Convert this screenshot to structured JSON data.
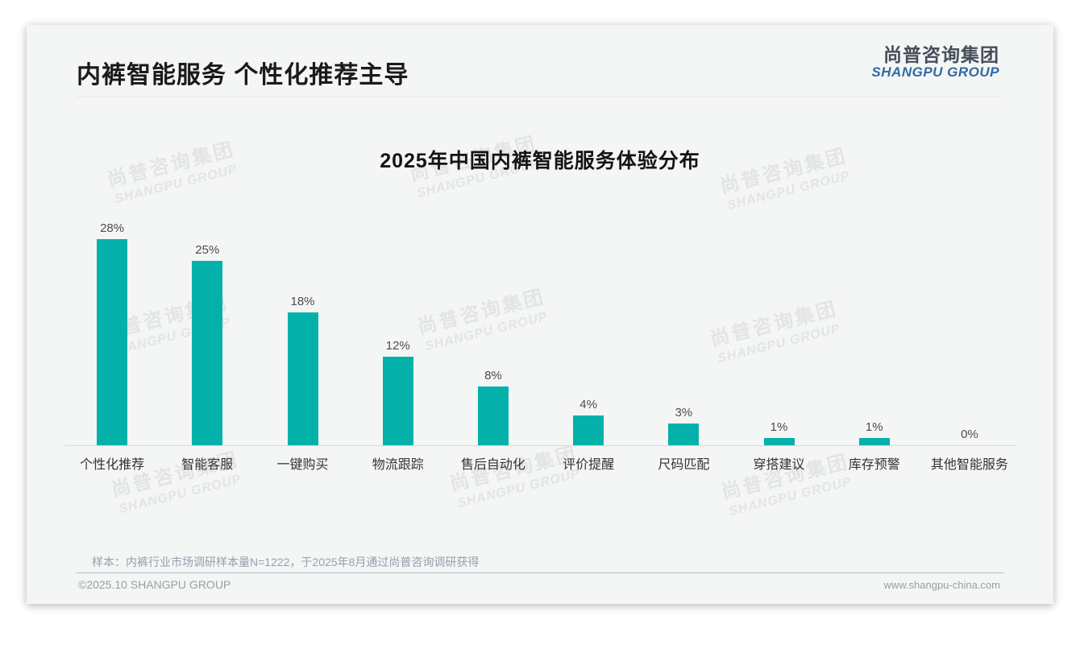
{
  "header": {
    "title": "内裤智能服务 个性化推荐主导"
  },
  "logo": {
    "cn": "尚普咨询集团",
    "en": "SHANGPU GROUP"
  },
  "watermark": {
    "cn": "尚普咨询集团",
    "en": "SHANGPU GROUP"
  },
  "chart_data": {
    "type": "bar",
    "title": "2025年中国内裤智能服务体验分布",
    "categories": [
      "个性化推荐",
      "智能客服",
      "一键购买",
      "物流跟踪",
      "售后自动化",
      "评价提醒",
      "尺码匹配",
      "穿搭建议",
      "库存预警",
      "其他智能服务"
    ],
    "values": [
      28,
      25,
      18,
      12,
      8,
      4,
      3,
      1,
      1,
      0
    ],
    "value_labels": [
      "28%",
      "25%",
      "18%",
      "12%",
      "8%",
      "4%",
      "3%",
      "1%",
      "1%",
      "0%"
    ],
    "unit": "%",
    "xlabel": "",
    "ylabel": "",
    "ylim": [
      0,
      30
    ],
    "bar_color": "#03b1aa",
    "grid": false,
    "legend": false
  },
  "footnote": {
    "text": "样本：内裤行业市场调研样本量N=1222，于2025年8月通过尚普咨询调研获得"
  },
  "footer": {
    "left": "©2025.10 SHANGPU GROUP",
    "right": "www.shangpu-china.com"
  }
}
